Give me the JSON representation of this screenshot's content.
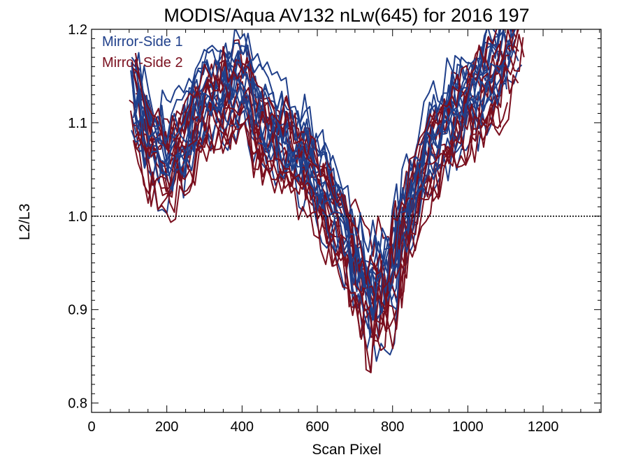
{
  "chart_data": {
    "type": "line",
    "title": "MODIS/Aqua AV132 nLw(645) for 2016 197",
    "xlabel": "Scan Pixel",
    "ylabel": "L2/L3",
    "xlim": [
      0,
      1354
    ],
    "ylim": [
      0.79,
      1.2
    ],
    "xticks": [
      "0",
      "200",
      "400",
      "600",
      "800",
      "1000",
      "1200"
    ],
    "yticks": [
      "0.8",
      "0.9",
      "1.0",
      "1.1",
      "1.2"
    ],
    "reference_line": 1.0,
    "legend_position": "top-left",
    "series_colors": [
      "#1f3f8a",
      "#7a0f1e"
    ],
    "series": [
      {
        "name": "Mirror-Side 1",
        "color": "#1f3f8a"
      },
      {
        "name": "Mirror-Side 2",
        "color": "#7a0f1e"
      }
    ],
    "x": [
      100,
      150,
      200,
      250,
      300,
      350,
      400,
      450,
      500,
      550,
      600,
      650,
      700,
      740,
      780,
      820,
      860,
      900,
      950,
      1000,
      1050,
      1100,
      1150
    ],
    "band_center": [
      1.14,
      1.08,
      1.06,
      1.08,
      1.12,
      1.13,
      1.14,
      1.1,
      1.08,
      1.07,
      1.04,
      1.0,
      0.96,
      0.92,
      0.93,
      0.97,
      1.03,
      1.07,
      1.1,
      1.12,
      1.14,
      1.17,
      1.2
    ]
  }
}
